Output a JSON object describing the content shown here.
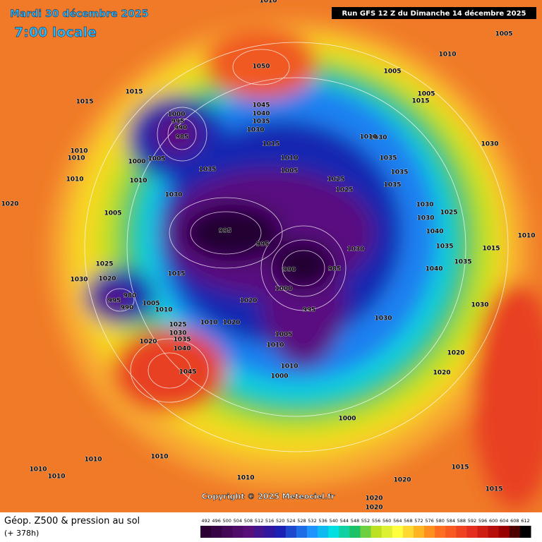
{
  "header": {
    "date": "Mardi 30 décembre 2025",
    "time": "7:00 locale",
    "run": "Run GFS 12 Z du Dimanche 14 décembre 2025"
  },
  "map": {
    "copyright": "Copyright © 2025 Meteociel.fr",
    "pressure_labels": [
      "1010",
      "1005",
      "1010",
      "1050",
      "1005",
      "1015",
      "1015",
      "1005",
      "1015",
      "1045",
      "1040",
      "1035",
      "1030",
      "1000",
      "995",
      "990",
      "985",
      "1015",
      "1030",
      "1010",
      "1010",
      "1000",
      "1005",
      "1010",
      "1035",
      "1030",
      "1010",
      "1035",
      "1010",
      "1010",
      "1005",
      "1035",
      "1025",
      "1025",
      "1035",
      "1030",
      "1020",
      "1030",
      "1005",
      "1030",
      "1025",
      "1040",
      "995",
      "995",
      "1035",
      "1015",
      "1010",
      "1030",
      "1025",
      "1035",
      "990",
      "985",
      "1040",
      "1015",
      "1030",
      "1020",
      "1000",
      "980",
      "995",
      "990",
      "1005",
      "1010",
      "995",
      "1020",
      "1030",
      "1030",
      "1010",
      "1020",
      "1025",
      "1005",
      "1030",
      "1035",
      "1020",
      "1010",
      "1040",
      "1020",
      "1045",
      "1010",
      "1020",
      "1000",
      "1000",
      "1010",
      "1010",
      "1015",
      "1010",
      "1010",
      "1010",
      "1020",
      "1015",
      "1020",
      "1020"
    ]
  },
  "footer": {
    "title": "Géop. Z500 & pression au sol",
    "subtitle": "(+ 378h)",
    "scale": [
      492,
      496,
      500,
      504,
      508,
      512,
      516,
      520,
      524,
      528,
      532,
      536,
      540,
      544,
      548,
      552,
      556,
      560,
      564,
      568,
      572,
      576,
      580,
      584,
      588,
      592,
      596,
      600,
      604,
      608,
      612
    ]
  }
}
